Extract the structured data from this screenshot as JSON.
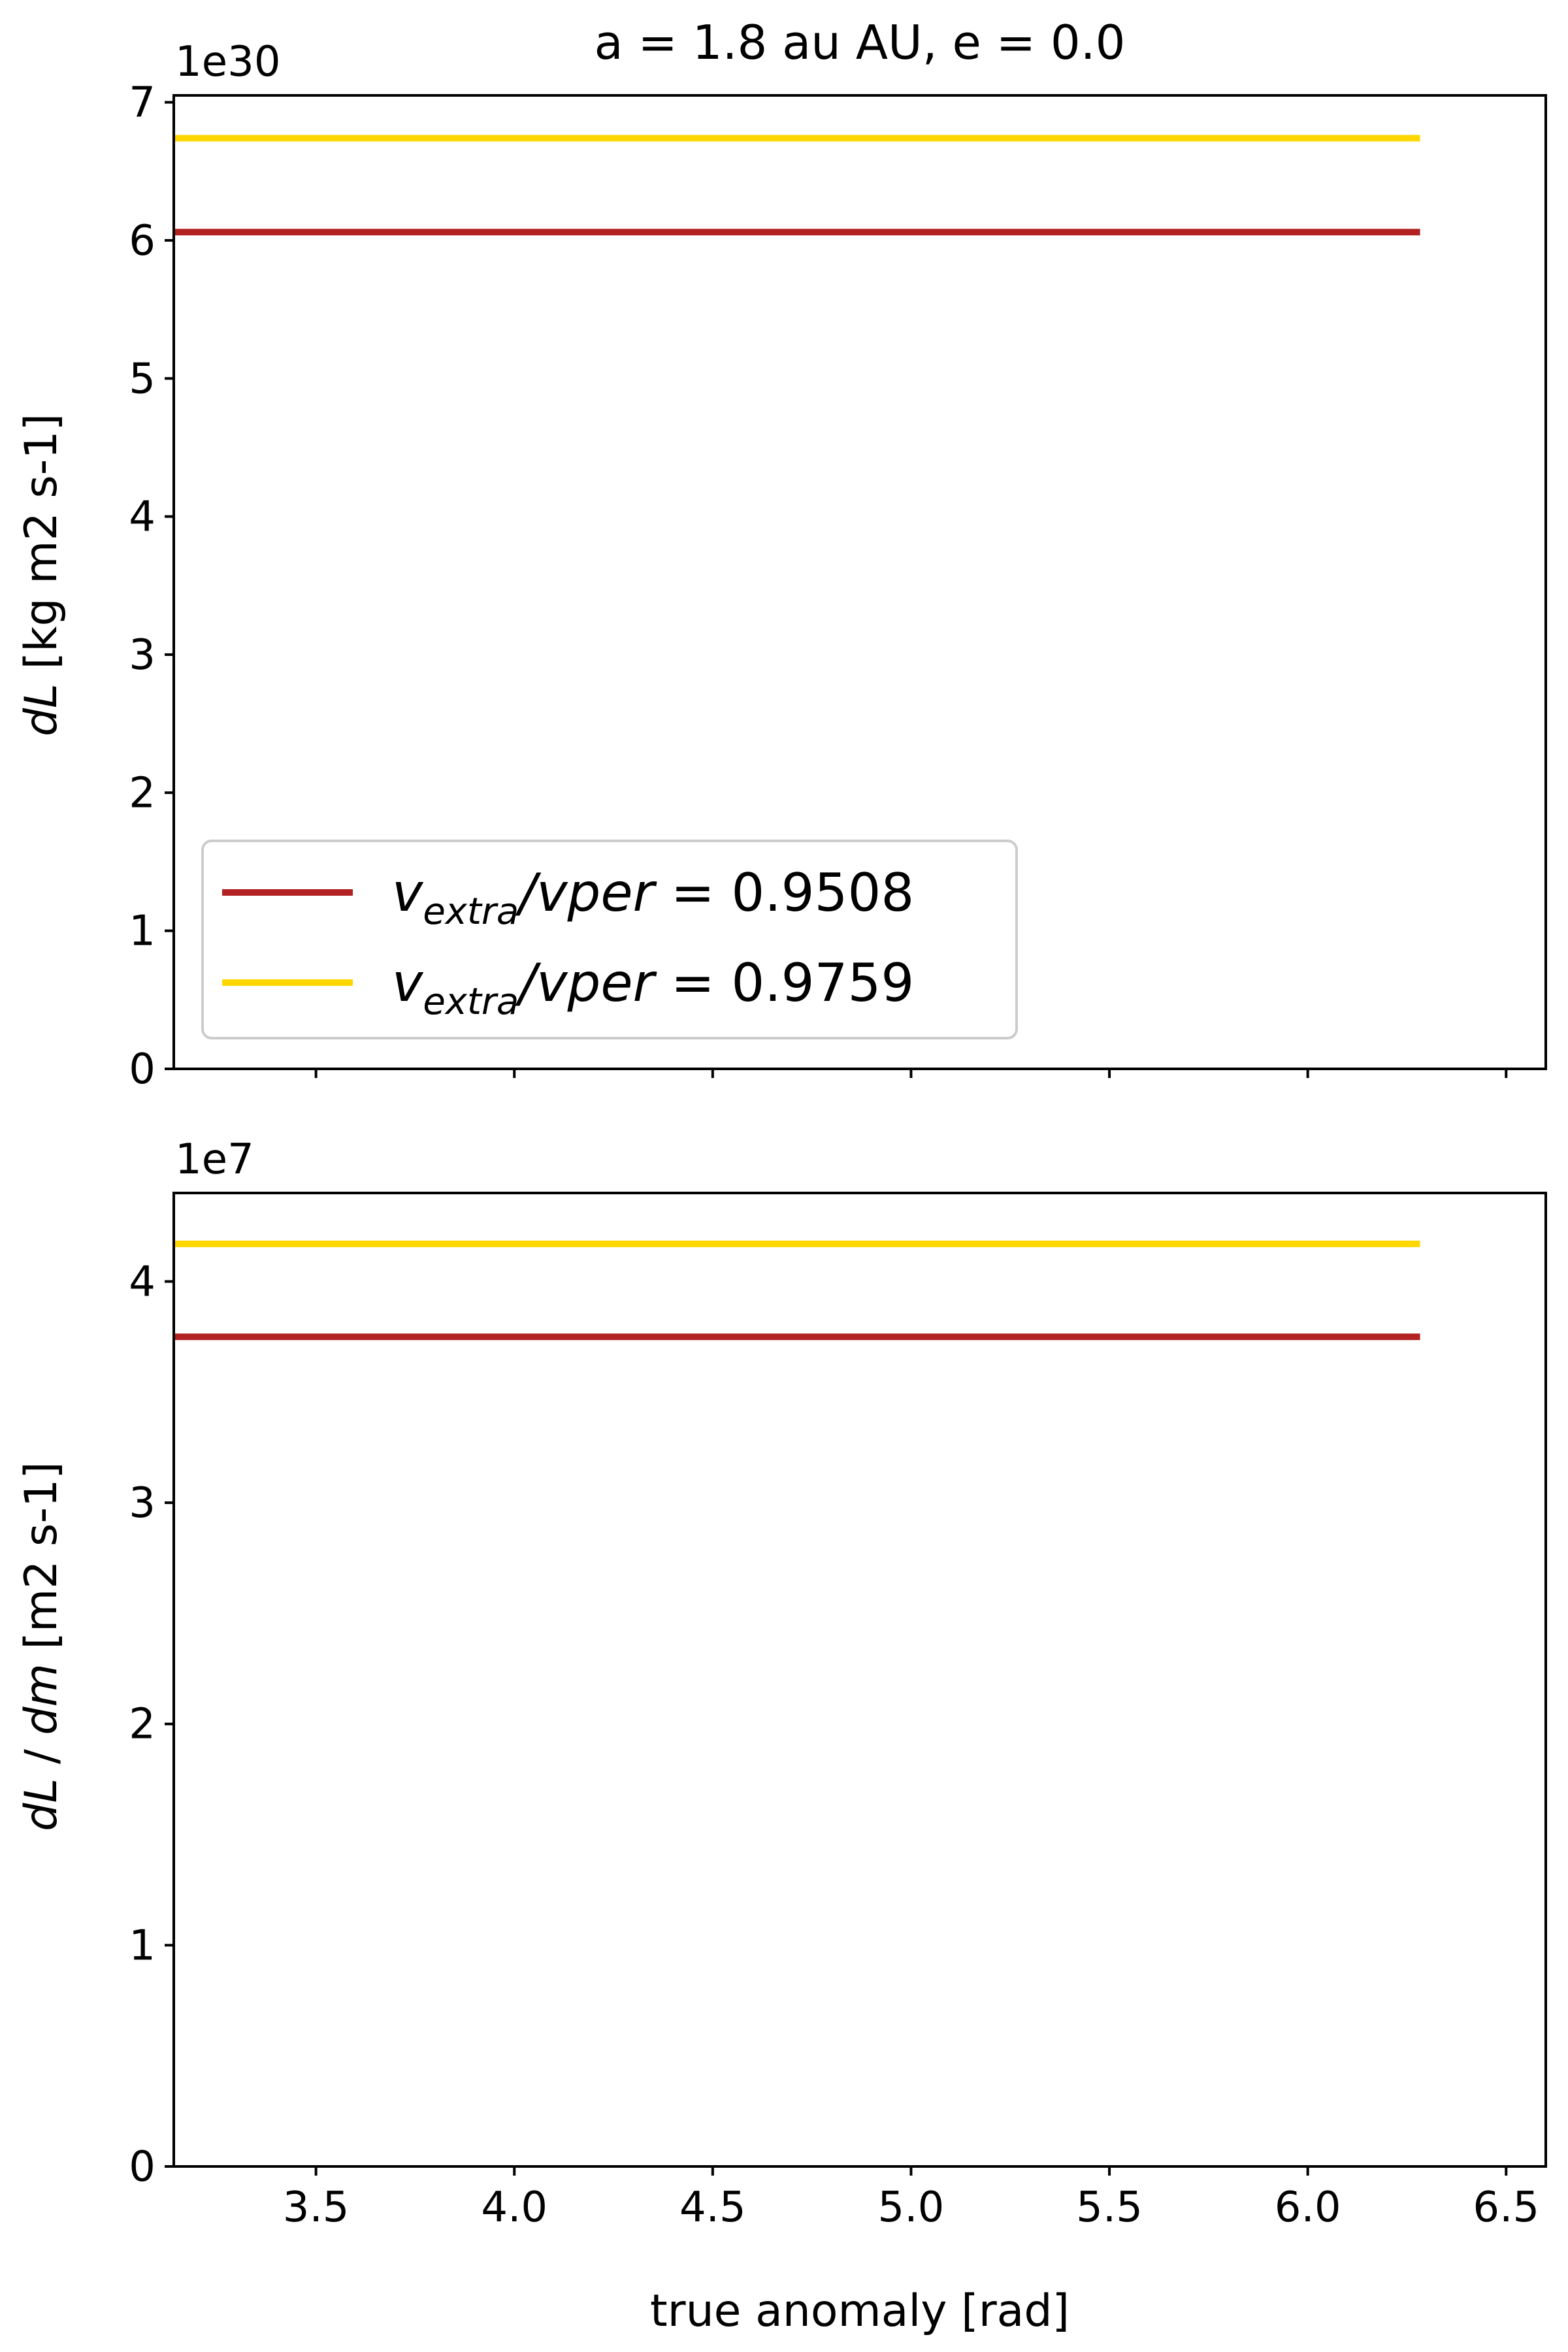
{
  "chart_data": [
    {
      "type": "line",
      "title": "a = 1.8 au AU, e = 0.0",
      "xlabel": "",
      "ylabel": "dL [kg m2 s-1]",
      "ylabel_var": "dL",
      "ylabel_unit": " [kg m2 s-1]",
      "offset_text": "1e30",
      "xlim": [
        3.1416,
        6.6
      ],
      "ylim": [
        0,
        7.05
      ],
      "xticks": [
        3.5,
        4.0,
        4.5,
        5.0,
        5.5,
        6.0,
        6.5
      ],
      "xtick_labels_visible": false,
      "yticks": [
        0,
        1,
        2,
        3,
        4,
        5,
        6,
        7
      ],
      "ytick_labels": [
        "0",
        "1",
        "2",
        "3",
        "4",
        "5",
        "6",
        "7"
      ],
      "grid": false,
      "legend_position": "lower-left",
      "series": [
        {
          "name": "v_extra/v_per = 0.9508",
          "legend_label": {
            "var": "v",
            "sub": "extra",
            "rest": "/v",
            "italic_rest": "per",
            "value": " = 0.9508"
          },
          "color": "#b22222",
          "x": [
            3.1416,
            6.2832
          ],
          "y": [
            6.06,
            6.06
          ]
        },
        {
          "name": "v_extra/v_per = 0.9759",
          "legend_label": {
            "var": "v",
            "sub": "extra",
            "rest": "/v",
            "italic_rest": "per",
            "value": " = 0.9759"
          },
          "color": "#ffd700",
          "x": [
            3.1416,
            6.2832
          ],
          "y": [
            6.74,
            6.74
          ]
        }
      ]
    },
    {
      "type": "line",
      "title": "",
      "xlabel": "true anomaly [rad]",
      "ylabel": "dL / dm [m2 s-1]",
      "ylabel_var1": "dL",
      "ylabel_mid": " / ",
      "ylabel_var2": "dm",
      "ylabel_unit": " [m2 s-1]",
      "offset_text": "1e7",
      "xlim": [
        3.1416,
        6.6
      ],
      "ylim": [
        0,
        4.4
      ],
      "xticks": [
        3.5,
        4.0,
        4.5,
        5.0,
        5.5,
        6.0,
        6.5
      ],
      "xtick_labels": [
        "3.5",
        "4.0",
        "4.5",
        "5.0",
        "5.5",
        "6.0",
        "6.5"
      ],
      "yticks": [
        0,
        1,
        2,
        3,
        4
      ],
      "ytick_labels": [
        "0",
        "1",
        "2",
        "3",
        "4"
      ],
      "grid": false,
      "series": [
        {
          "name": "v_extra/v_per = 0.9508",
          "color": "#b22222",
          "x": [
            3.1416,
            6.2832
          ],
          "y": [
            3.75,
            3.75
          ]
        },
        {
          "name": "v_extra/v_per = 0.9759",
          "color": "#ffd700",
          "x": [
            3.1416,
            6.2832
          ],
          "y": [
            4.17,
            4.17
          ]
        }
      ]
    }
  ]
}
